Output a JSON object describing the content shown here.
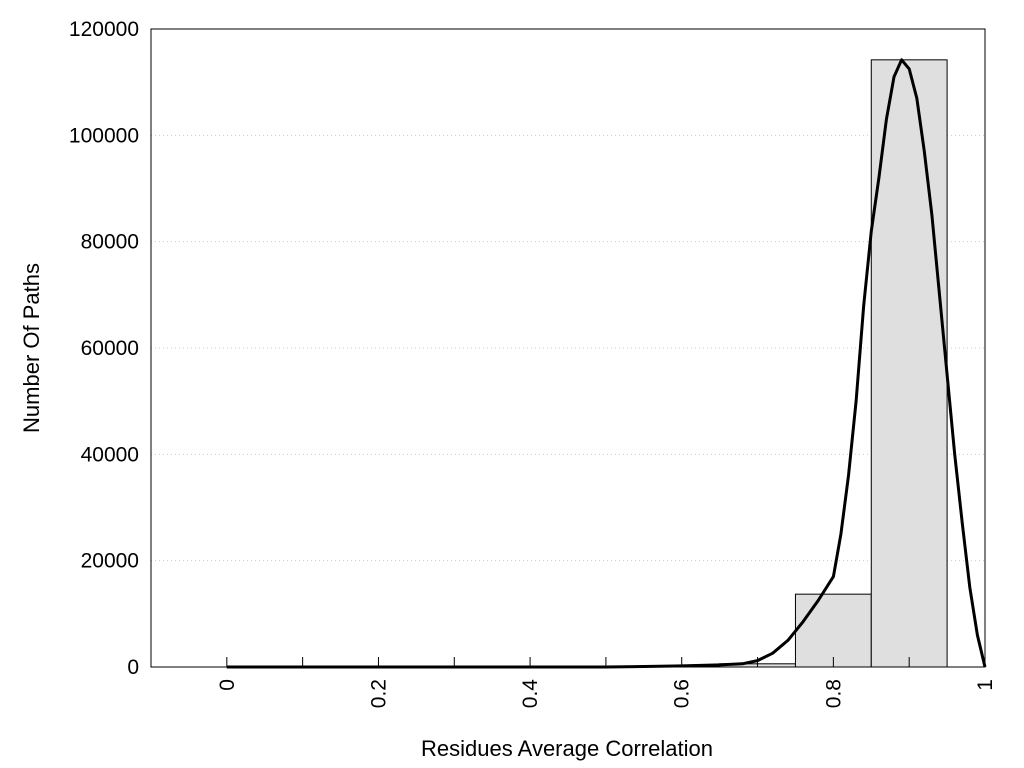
{
  "chart_data": {
    "type": "bar",
    "title": "",
    "xlabel": "Residues Average Correlation",
    "ylabel": "Number Of Paths",
    "xlim": [
      -0.1,
      1.0
    ],
    "ylim": [
      0,
      120000
    ],
    "x_ticks": [
      0,
      0.2,
      0.4,
      0.6,
      0.8,
      1
    ],
    "x_tick_labels": [
      "0",
      "0.2",
      "0.4",
      "0.6",
      "0.8",
      "1"
    ],
    "x_minor_ticks": [
      0.1,
      0.3,
      0.5,
      0.7,
      0.9
    ],
    "y_ticks": [
      0,
      20000,
      40000,
      60000,
      80000,
      100000,
      120000
    ],
    "y_tick_labels": [
      "0",
      "20000",
      "40000",
      "60000",
      "80000",
      "100000",
      "120000"
    ],
    "grid": "horizontal dotted",
    "bar_width": 0.1,
    "bars": [
      {
        "x": 0.0,
        "value": 0
      },
      {
        "x": 0.1,
        "value": 0
      },
      {
        "x": 0.2,
        "value": 0
      },
      {
        "x": 0.3,
        "value": 0
      },
      {
        "x": 0.4,
        "value": 0
      },
      {
        "x": 0.5,
        "value": 0
      },
      {
        "x": 0.6,
        "value": 50
      },
      {
        "x": 0.7,
        "value": 600
      },
      {
        "x": 0.8,
        "value": 13700
      },
      {
        "x": 0.9,
        "value": 114200
      }
    ],
    "fit_curve": {
      "x": [
        0,
        0.1,
        0.2,
        0.3,
        0.4,
        0.5,
        0.55,
        0.6,
        0.65,
        0.68,
        0.7,
        0.72,
        0.74,
        0.76,
        0.78,
        0.8,
        0.81,
        0.82,
        0.83,
        0.84,
        0.85,
        0.86,
        0.87,
        0.88,
        0.89,
        0.9,
        0.91,
        0.92,
        0.93,
        0.94,
        0.95,
        0.96,
        0.97,
        0.98,
        0.99,
        1.0
      ],
      "y": [
        0,
        0,
        0,
        0,
        0,
        0,
        100,
        200,
        400,
        600,
        1200,
        2600,
        5000,
        8500,
        12500,
        17000,
        25000,
        36000,
        50000,
        68000,
        82000,
        92000,
        103000,
        111000,
        114200,
        112500,
        107000,
        97000,
        85000,
        70000,
        55000,
        40000,
        27000,
        15000,
        6000,
        0
      ]
    },
    "colors": {
      "bar_fill": "#dfdfdf",
      "bar_stroke": "#000000",
      "curve": "#000000",
      "grid": "#cccccc"
    }
  }
}
